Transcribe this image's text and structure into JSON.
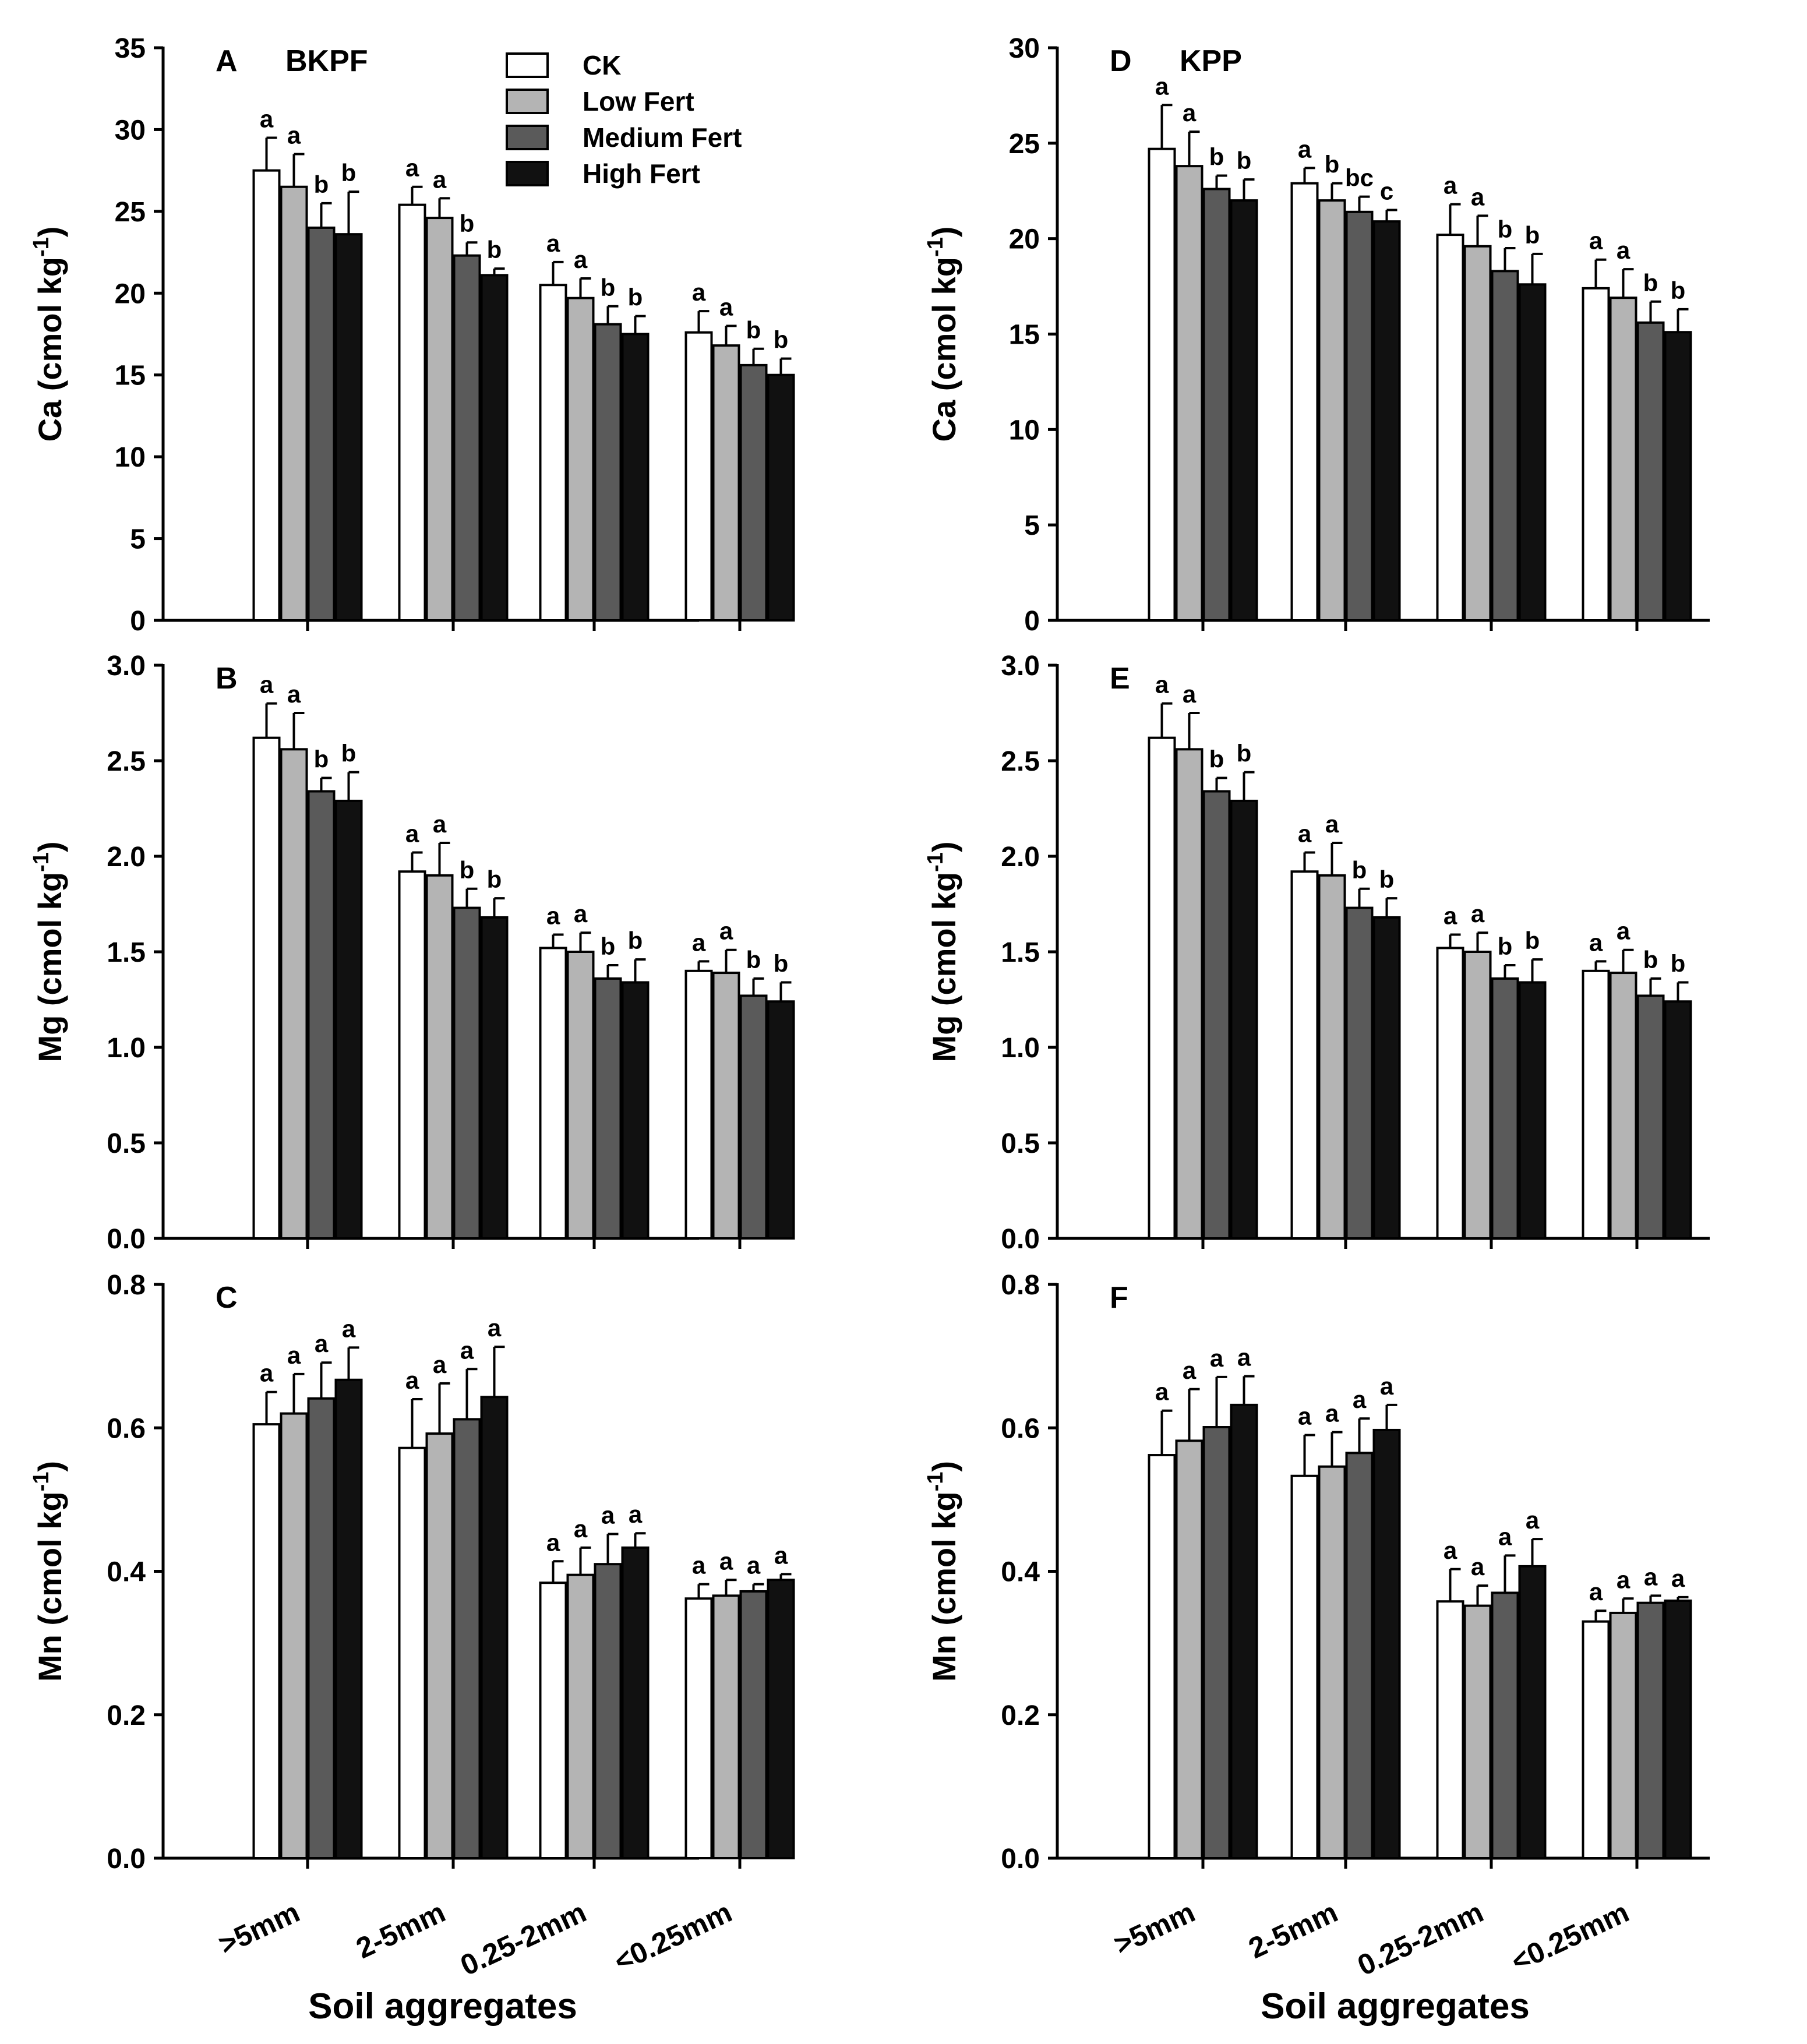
{
  "series_names": [
    "CK",
    "Low Fert",
    "Medium Fert",
    "High Fert"
  ],
  "series_colors": [
    "#ffffff",
    "#b4b4b4",
    "#5a5a5a",
    "#111111"
  ],
  "categories": [
    ">5mm",
    "2-5mm",
    "0.25-2mm",
    "<0.25mm"
  ],
  "xlabel": "Soil aggregates",
  "chart_data": [
    {
      "type": "bar",
      "letter": "A",
      "site": "BKPF",
      "ylabel_main": "Ca (cmol kg",
      "ylabel_sup": "-1",
      "ylabel_end": ")",
      "ylim": [
        0,
        35
      ],
      "yticks": [
        "0",
        "5",
        "10",
        "15",
        "20",
        "25",
        "30",
        "35"
      ],
      "categories": [
        ">5mm",
        "2-5mm",
        "0.25-2mm",
        "<0.25mm"
      ],
      "series": [
        {
          "name": "CK",
          "values": [
            27.5,
            25.4,
            20.5,
            17.6
          ],
          "errors": [
            2.0,
            1.1,
            1.4,
            1.3
          ],
          "letters": [
            "a",
            "a",
            "a",
            "a"
          ]
        },
        {
          "name": "Low Fert",
          "values": [
            26.5,
            24.6,
            19.7,
            16.8
          ],
          "errors": [
            2.0,
            1.2,
            1.2,
            1.2
          ],
          "letters": [
            "a",
            "a",
            "a",
            "a"
          ]
        },
        {
          "name": "Medium Fert",
          "values": [
            24.0,
            22.3,
            18.1,
            15.6
          ],
          "errors": [
            1.5,
            0.8,
            1.1,
            1.0
          ],
          "letters": [
            "b",
            "b",
            "b",
            "b"
          ]
        },
        {
          "name": "High Fert",
          "values": [
            23.6,
            21.1,
            17.5,
            15.0
          ],
          "errors": [
            2.6,
            0.4,
            1.1,
            1.0
          ],
          "letters": [
            "b",
            "b",
            "b",
            "b"
          ]
        }
      ]
    },
    {
      "type": "bar",
      "letter": "B",
      "site": "",
      "ylabel_main": "Mg (cmol kg",
      "ylabel_sup": "-1",
      "ylabel_end": ")",
      "ylim": [
        0,
        3
      ],
      "yticks": [
        "0.0",
        "0.5",
        "1.0",
        "1.5",
        "2.0",
        "2.5",
        "3.0"
      ],
      "categories": [
        ">5mm",
        "2-5mm",
        "0.25-2mm",
        "<0.25mm"
      ],
      "series": [
        {
          "name": "CK",
          "values": [
            2.62,
            1.92,
            1.52,
            1.4
          ],
          "errors": [
            0.18,
            0.1,
            0.07,
            0.05
          ],
          "letters": [
            "a",
            "a",
            "a",
            "a"
          ]
        },
        {
          "name": "Low Fert",
          "values": [
            2.56,
            1.9,
            1.5,
            1.39
          ],
          "errors": [
            0.19,
            0.17,
            0.1,
            0.12
          ],
          "letters": [
            "a",
            "a",
            "a",
            "a"
          ]
        },
        {
          "name": "Medium Fert",
          "values": [
            2.34,
            1.73,
            1.36,
            1.27
          ],
          "errors": [
            0.07,
            0.1,
            0.07,
            0.09
          ],
          "letters": [
            "b",
            "b",
            "b",
            "b"
          ]
        },
        {
          "name": "High Fert",
          "values": [
            2.29,
            1.68,
            1.34,
            1.24
          ],
          "errors": [
            0.15,
            0.1,
            0.12,
            0.1
          ],
          "letters": [
            "b",
            "b",
            "b",
            "b"
          ]
        }
      ]
    },
    {
      "type": "bar",
      "letter": "C",
      "site": "",
      "ylabel_main": "Mn (cmol kg",
      "ylabel_sup": "-1",
      "ylabel_end": ")",
      "ylim": [
        0,
        0.8
      ],
      "yticks": [
        "0.0",
        "0.2",
        "0.4",
        "0.6",
        "0.8"
      ],
      "categories": [
        ">5mm",
        "2-5mm",
        "0.25-2mm",
        "<0.25mm"
      ],
      "series": [
        {
          "name": "CK",
          "values": [
            0.605,
            0.572,
            0.384,
            0.362
          ],
          "errors": [
            0.045,
            0.068,
            0.03,
            0.02
          ],
          "letters": [
            "a",
            "a",
            "a",
            "a"
          ]
        },
        {
          "name": "Low Fert",
          "values": [
            0.62,
            0.592,
            0.395,
            0.366
          ],
          "errors": [
            0.055,
            0.07,
            0.038,
            0.022
          ],
          "letters": [
            "a",
            "a",
            "a",
            "a"
          ]
        },
        {
          "name": "Medium Fert",
          "values": [
            0.641,
            0.612,
            0.41,
            0.372
          ],
          "errors": [
            0.05,
            0.07,
            0.042,
            0.01
          ],
          "letters": [
            "a",
            "a",
            "a",
            "a"
          ]
        },
        {
          "name": "High Fert",
          "values": [
            0.667,
            0.643,
            0.433,
            0.388
          ],
          "errors": [
            0.045,
            0.07,
            0.02,
            0.008
          ],
          "letters": [
            "a",
            "a",
            "a",
            "a"
          ]
        }
      ]
    },
    {
      "type": "bar",
      "letter": "D",
      "site": "KPP",
      "ylabel_main": "Ca (cmol kg",
      "ylabel_sup": "-1",
      "ylabel_end": ")",
      "ylim": [
        0,
        30
      ],
      "yticks": [
        "0",
        "5",
        "10",
        "15",
        "20",
        "25",
        "30"
      ],
      "categories": [
        ">5mm",
        "2-5mm",
        "0.25-2mm",
        "<0.25mm"
      ],
      "series": [
        {
          "name": "CK",
          "values": [
            24.7,
            22.9,
            20.2,
            17.4
          ],
          "errors": [
            2.3,
            0.8,
            1.6,
            1.5
          ],
          "letters": [
            "a",
            "a",
            "a",
            "a"
          ]
        },
        {
          "name": "Low Fert",
          "values": [
            23.8,
            22.0,
            19.6,
            16.9
          ],
          "errors": [
            1.8,
            0.9,
            1.6,
            1.5
          ],
          "letters": [
            "a",
            "b",
            "a",
            "a"
          ]
        },
        {
          "name": "Medium Fert",
          "values": [
            22.6,
            21.4,
            18.3,
            15.6
          ],
          "errors": [
            0.7,
            0.8,
            1.2,
            1.1
          ],
          "letters": [
            "b",
            "bc",
            "b",
            "b"
          ]
        },
        {
          "name": "High Fert",
          "values": [
            22.0,
            20.9,
            17.6,
            15.1
          ],
          "errors": [
            1.1,
            0.6,
            1.6,
            1.2
          ],
          "letters": [
            "b",
            "c",
            "b",
            "b"
          ]
        }
      ]
    },
    {
      "type": "bar",
      "letter": "E",
      "site": "",
      "ylabel_main": "Mg (cmol kg",
      "ylabel_sup": "-1",
      "ylabel_end": ")",
      "ylim": [
        0,
        3
      ],
      "yticks": [
        "0.0",
        "0.5",
        "1.0",
        "1.5",
        "2.0",
        "2.5",
        "3.0"
      ],
      "categories": [
        ">5mm",
        "2-5mm",
        "0.25-2mm",
        "<0.25mm"
      ],
      "series": [
        {
          "name": "CK",
          "values": [
            2.62,
            1.92,
            1.52,
            1.4
          ],
          "errors": [
            0.18,
            0.1,
            0.07,
            0.05
          ],
          "letters": [
            "a",
            "a",
            "a",
            "a"
          ]
        },
        {
          "name": "Low Fert",
          "values": [
            2.56,
            1.9,
            1.5,
            1.39
          ],
          "errors": [
            0.19,
            0.17,
            0.1,
            0.12
          ],
          "letters": [
            "a",
            "a",
            "a",
            "a"
          ]
        },
        {
          "name": "Medium Fert",
          "values": [
            2.34,
            1.73,
            1.36,
            1.27
          ],
          "errors": [
            0.07,
            0.1,
            0.07,
            0.09
          ],
          "letters": [
            "b",
            "b",
            "b",
            "b"
          ]
        },
        {
          "name": "High Fert",
          "values": [
            2.29,
            1.68,
            1.34,
            1.24
          ],
          "errors": [
            0.15,
            0.1,
            0.12,
            0.1
          ],
          "letters": [
            "b",
            "b",
            "b",
            "b"
          ]
        }
      ]
    },
    {
      "type": "bar",
      "letter": "F",
      "site": "",
      "ylabel_main": "Mn (cmol kg",
      "ylabel_sup": "-1",
      "ylabel_end": ")",
      "ylim": [
        0,
        0.8
      ],
      "yticks": [
        "0.0",
        "0.2",
        "0.4",
        "0.6",
        "0.8"
      ],
      "categories": [
        ">5mm",
        "2-5mm",
        "0.25-2mm",
        "<0.25mm"
      ],
      "series": [
        {
          "name": "CK",
          "values": [
            0.562,
            0.533,
            0.358,
            0.33
          ],
          "errors": [
            0.062,
            0.057,
            0.045,
            0.015
          ],
          "letters": [
            "a",
            "a",
            "a",
            "a"
          ]
        },
        {
          "name": "Low Fert",
          "values": [
            0.582,
            0.546,
            0.352,
            0.342
          ],
          "errors": [
            0.072,
            0.048,
            0.028,
            0.02
          ],
          "letters": [
            "a",
            "a",
            "a",
            "a"
          ]
        },
        {
          "name": "Medium Fert",
          "values": [
            0.601,
            0.565,
            0.37,
            0.356
          ],
          "errors": [
            0.07,
            0.048,
            0.052,
            0.01
          ],
          "letters": [
            "a",
            "a",
            "a",
            "a"
          ]
        },
        {
          "name": "High Fert",
          "values": [
            0.632,
            0.597,
            0.407,
            0.359
          ],
          "errors": [
            0.04,
            0.035,
            0.038,
            0.005
          ],
          "letters": [
            "a",
            "a",
            "a",
            "a"
          ]
        }
      ]
    }
  ]
}
